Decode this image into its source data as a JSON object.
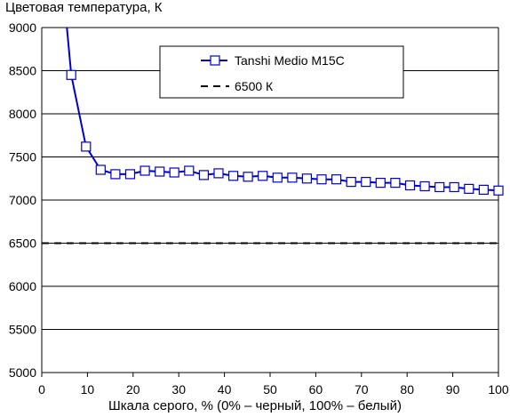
{
  "chart_data": {
    "type": "line",
    "ylabel": "Цветовая температура, К",
    "xlabel": "Шкала серого, % (0% – черный, 100% – белый)",
    "xlim": [
      0,
      100
    ],
    "ylim": [
      5000,
      9000
    ],
    "xticks": [
      "0",
      "10",
      "20",
      "30",
      "40",
      "50",
      "60",
      "70",
      "80",
      "90",
      "100"
    ],
    "yticks": [
      "5000",
      "5500",
      "6000",
      "6500",
      "7000",
      "7500",
      "8000",
      "8500",
      "9000"
    ],
    "grid": "horizontal",
    "legend_position": "top-center",
    "series": [
      {
        "name": "Tanshi Medio M15C",
        "color": "#0000cc",
        "marker": "square-open",
        "x": [
          6.45,
          9.68,
          12.9,
          16.13,
          19.35,
          22.58,
          25.81,
          29.03,
          32.26,
          35.48,
          38.71,
          41.94,
          45.16,
          48.39,
          51.61,
          54.84,
          58.06,
          61.29,
          64.52,
          67.74,
          70.97,
          74.19,
          77.42,
          80.65,
          83.87,
          87.1,
          90.32,
          93.55,
          96.77,
          100
        ],
        "values": [
          8450,
          7620,
          7350,
          7300,
          7300,
          7340,
          7330,
          7320,
          7340,
          7290,
          7310,
          7280,
          7270,
          7280,
          7260,
          7260,
          7250,
          7240,
          7240,
          7210,
          7210,
          7200,
          7200,
          7170,
          7160,
          7150,
          7150,
          7130,
          7120,
          7110
        ],
        "line_extends_to": {
          "x": 5.5,
          "value": 9000
        }
      },
      {
        "name": "6500 К",
        "color": "#000000",
        "style": "dashed",
        "x": [
          0,
          100
        ],
        "values": [
          6500,
          6500
        ]
      }
    ]
  }
}
